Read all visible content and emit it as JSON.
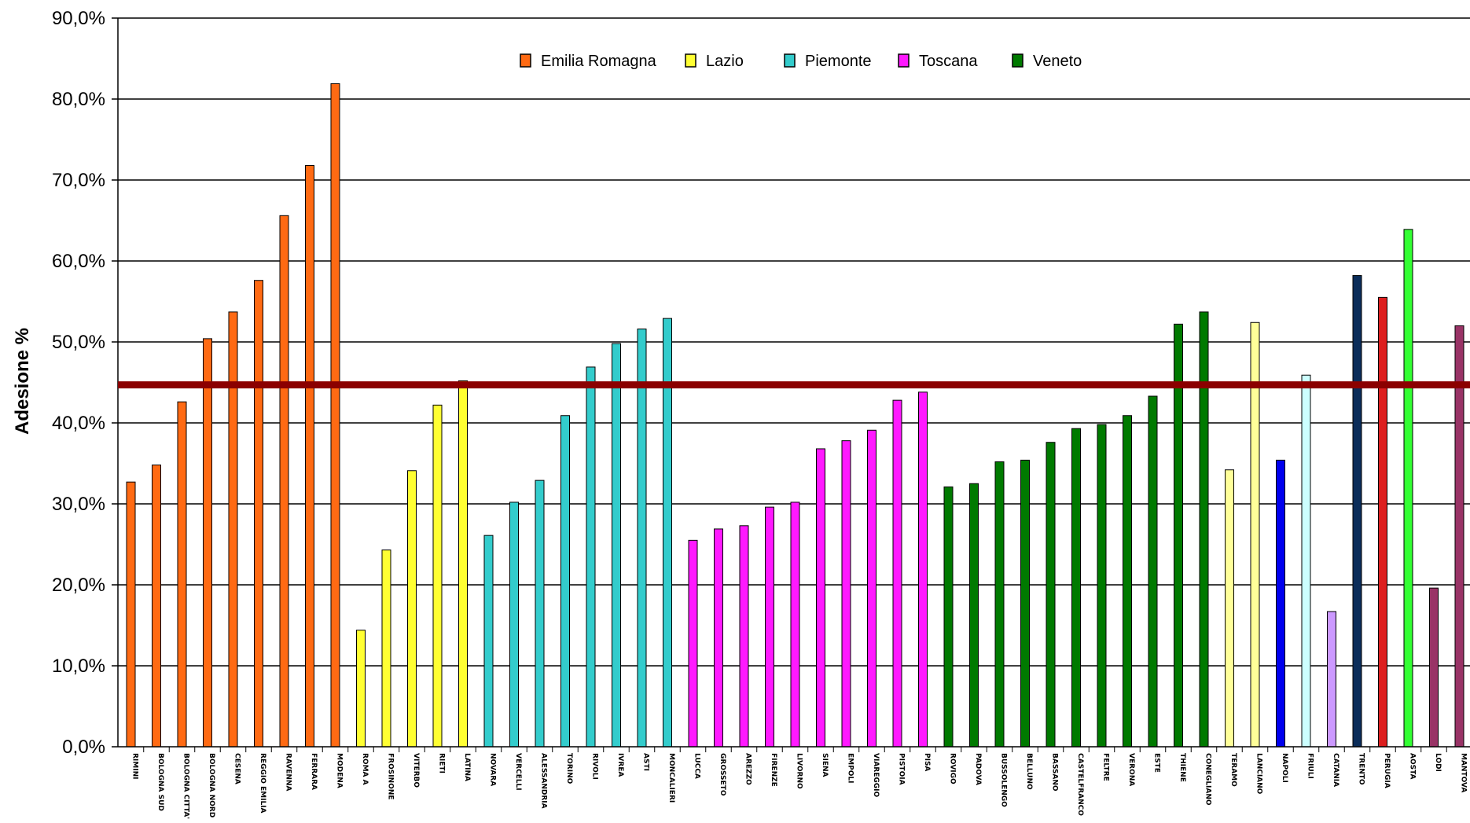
{
  "chart_data": {
    "type": "bar",
    "title": "",
    "xlabel": "",
    "ylabel": "Adesione %",
    "ylim": [
      0,
      90
    ],
    "yticks": [
      0,
      10,
      20,
      30,
      40,
      50,
      60,
      70,
      80,
      90
    ],
    "ytick_labels": [
      "0,0%",
      "10,0%",
      "20,0%",
      "30,0%",
      "40,0%",
      "50,0%",
      "60,0%",
      "70,0%",
      "80,0%",
      "90,0%"
    ],
    "grid": true,
    "legend_position": "top-center",
    "reference_line": {
      "value": 44.7,
      "color": "#8b0000"
    },
    "legend": [
      {
        "name": "Emilia Romagna",
        "color": "#ff6a13"
      },
      {
        "name": "Lazio",
        "color": "#ffff33"
      },
      {
        "name": "Piemonte",
        "color": "#33cccc"
      },
      {
        "name": "Toscana",
        "color": "#ff19ff"
      },
      {
        "name": "Veneto",
        "color": "#007a00"
      }
    ],
    "bars": [
      {
        "label": "RIMINI",
        "value": 32.7,
        "color": "#ff6a13"
      },
      {
        "label": "BOLOGNA SUD",
        "value": 34.8,
        "color": "#ff6a13"
      },
      {
        "label": "BOLOGNA CITTA'",
        "value": 42.6,
        "color": "#ff6a13"
      },
      {
        "label": "BOLOGNA NORD",
        "value": 50.4,
        "color": "#ff6a13"
      },
      {
        "label": "CESENA",
        "value": 53.7,
        "color": "#ff6a13"
      },
      {
        "label": "REGGIO EMILIA",
        "value": 57.6,
        "color": "#ff6a13"
      },
      {
        "label": "RAVENNA",
        "value": 65.6,
        "color": "#ff6a13"
      },
      {
        "label": "FERRARA",
        "value": 71.8,
        "color": "#ff6a13"
      },
      {
        "label": "MODENA",
        "value": 81.9,
        "color": "#ff6a13"
      },
      {
        "label": "ROMA A",
        "value": 14.4,
        "color": "#ffff33"
      },
      {
        "label": "FROSINONE",
        "value": 24.3,
        "color": "#ffff33"
      },
      {
        "label": "VITERBO",
        "value": 34.1,
        "color": "#ffff33"
      },
      {
        "label": "RIETI",
        "value": 42.2,
        "color": "#ffff33"
      },
      {
        "label": "LATINA",
        "value": 45.2,
        "color": "#ffff33"
      },
      {
        "label": "NOVARA",
        "value": 26.1,
        "color": "#33cccc"
      },
      {
        "label": "VERCELLI",
        "value": 30.2,
        "color": "#33cccc"
      },
      {
        "label": "ALESSANDRIA",
        "value": 32.9,
        "color": "#33cccc"
      },
      {
        "label": "TORINO",
        "value": 40.9,
        "color": "#33cccc"
      },
      {
        "label": "RIVOLI",
        "value": 46.9,
        "color": "#33cccc"
      },
      {
        "label": "IVREA",
        "value": 49.8,
        "color": "#33cccc"
      },
      {
        "label": "ASTI",
        "value": 51.6,
        "color": "#33cccc"
      },
      {
        "label": "MONCALIERI",
        "value": 52.9,
        "color": "#33cccc"
      },
      {
        "label": "LUCCA",
        "value": 25.5,
        "color": "#ff19ff"
      },
      {
        "label": "GROSSETO",
        "value": 26.9,
        "color": "#ff19ff"
      },
      {
        "label": "AREZZO",
        "value": 27.3,
        "color": "#ff19ff"
      },
      {
        "label": "FIRENZE",
        "value": 29.6,
        "color": "#ff19ff"
      },
      {
        "label": "LIVORNO",
        "value": 30.2,
        "color": "#ff19ff"
      },
      {
        "label": "SIENA",
        "value": 36.8,
        "color": "#ff19ff"
      },
      {
        "label": "EMPOLI",
        "value": 37.8,
        "color": "#ff19ff"
      },
      {
        "label": "VIAREGGIO",
        "value": 39.1,
        "color": "#ff19ff"
      },
      {
        "label": "PISTOIA",
        "value": 42.8,
        "color": "#ff19ff"
      },
      {
        "label": "PISA",
        "value": 43.8,
        "color": "#ff19ff"
      },
      {
        "label": "ROVIGO",
        "value": 32.1,
        "color": "#007a00"
      },
      {
        "label": "PADOVA",
        "value": 32.5,
        "color": "#007a00"
      },
      {
        "label": "BUSSOLENGO",
        "value": 35.2,
        "color": "#007a00"
      },
      {
        "label": "BELLUNO",
        "value": 35.4,
        "color": "#007a00"
      },
      {
        "label": "BASSANO",
        "value": 37.6,
        "color": "#007a00"
      },
      {
        "label": "CASTELFRANCO",
        "value": 39.3,
        "color": "#007a00"
      },
      {
        "label": "FELTRE",
        "value": 39.8,
        "color": "#007a00"
      },
      {
        "label": "VERONA",
        "value": 40.9,
        "color": "#007a00"
      },
      {
        "label": "ESTE",
        "value": 43.3,
        "color": "#007a00"
      },
      {
        "label": "THIENE",
        "value": 52.2,
        "color": "#007a00"
      },
      {
        "label": "CONEGLIANO",
        "value": 53.7,
        "color": "#007a00"
      },
      {
        "label": "TERAMO",
        "value": 34.2,
        "color": "#ffff99"
      },
      {
        "label": "LANCIANO",
        "value": 52.4,
        "color": "#ffff99"
      },
      {
        "label": "NAPOLI",
        "value": 35.4,
        "color": "#0000ee"
      },
      {
        "label": "FRIULI",
        "value": 45.9,
        "color": "#ccffff"
      },
      {
        "label": "CATANIA",
        "value": 16.7,
        "color": "#cc99ff"
      },
      {
        "label": "TRENTO",
        "value": 58.2,
        "color": "#0b2d5a"
      },
      {
        "label": "PERUGIA",
        "value": 55.5,
        "color": "#dd1f1f"
      },
      {
        "label": "AOSTA",
        "value": 63.9,
        "color": "#33ff33"
      },
      {
        "label": "LODI",
        "value": 19.6,
        "color": "#993366"
      },
      {
        "label": "MANTOVA",
        "value": 52.0,
        "color": "#993366"
      }
    ]
  }
}
